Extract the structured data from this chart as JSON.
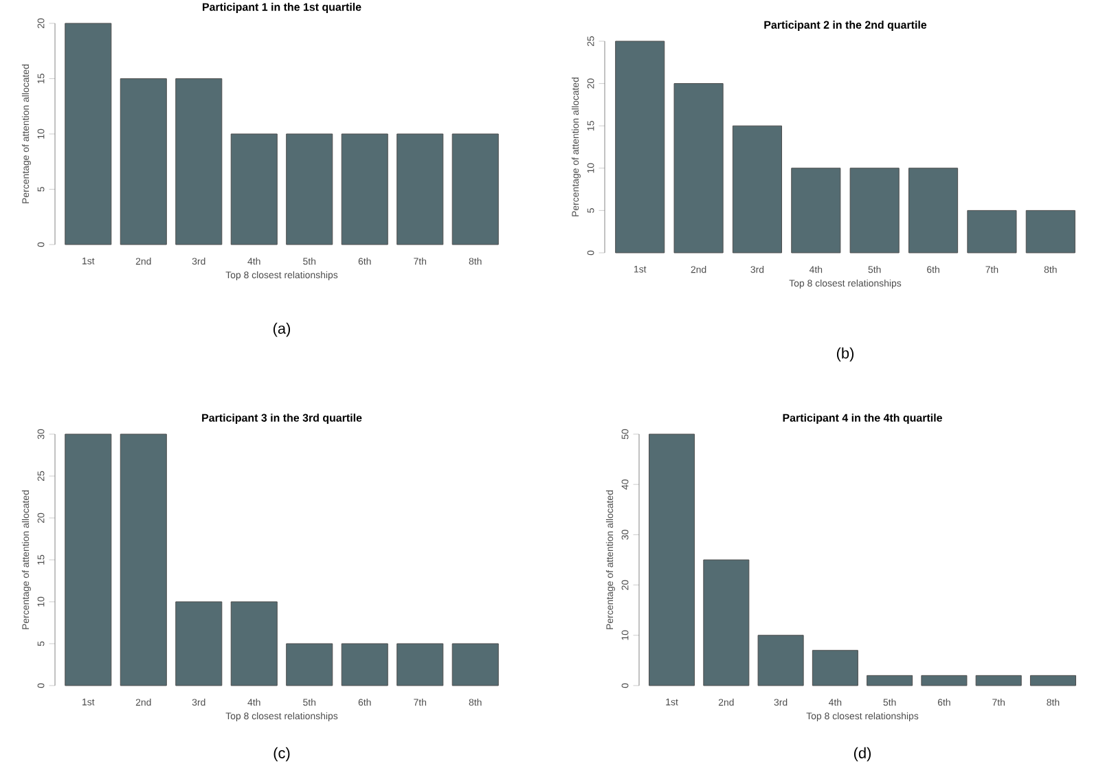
{
  "chart_data": [
    {
      "type": "bar",
      "title": "Participant 1 in the 1st quartile",
      "xlabel": "Top 8 closest relationships",
      "ylabel": "Percentage of attention allocated",
      "categories": [
        "1st",
        "2nd",
        "3rd",
        "4th",
        "5th",
        "6th",
        "7th",
        "8th"
      ],
      "values": [
        20,
        15,
        15,
        10,
        10,
        10,
        10,
        10
      ],
      "color": "#546c72",
      "ylim": [
        0,
        20
      ],
      "yticks": [
        0,
        5,
        10,
        15,
        20
      ],
      "annotations": [
        "(a)"
      ]
    },
    {
      "type": "bar",
      "title": "Participant 2 in the 2nd quartile",
      "xlabel": "Top 8 closest relationships",
      "ylabel": "Percentage of attention allocated",
      "categories": [
        "1st",
        "2nd",
        "3rd",
        "4th",
        "5th",
        "6th",
        "7th",
        "8th"
      ],
      "values": [
        25,
        20,
        15,
        10,
        10,
        10,
        5,
        5
      ],
      "color": "#546c72",
      "ylim": [
        0,
        25
      ],
      "yticks": [
        0,
        5,
        10,
        15,
        20,
        25
      ],
      "annotations": [
        "(b)"
      ]
    },
    {
      "type": "bar",
      "title": "Participant 3 in the 3rd quartile",
      "xlabel": "Top 8 closest relationships",
      "ylabel": "Percentage of attention allocated",
      "categories": [
        "1st",
        "2nd",
        "3rd",
        "4th",
        "5th",
        "6th",
        "7th",
        "8th"
      ],
      "values": [
        30,
        30,
        10,
        10,
        5,
        5,
        5,
        5
      ],
      "color": "#546c72",
      "ylim": [
        0,
        30
      ],
      "yticks": [
        0,
        5,
        10,
        15,
        20,
        25,
        30
      ],
      "annotations": [
        "(c)"
      ]
    },
    {
      "type": "bar",
      "title": "Participant 4 in the 4th quartile",
      "xlabel": "Top 8 closest relationships",
      "ylabel": "Percentage of attention allocated",
      "categories": [
        "1st",
        "2nd",
        "3rd",
        "4th",
        "5th",
        "6th",
        "7th",
        "8th"
      ],
      "values": [
        50,
        25,
        10,
        7,
        2,
        2,
        2,
        2
      ],
      "color": "#546c72",
      "ylim": [
        0,
        50
      ],
      "yticks": [
        0,
        10,
        20,
        30,
        40,
        50
      ],
      "annotations": [
        "(d)"
      ]
    }
  ]
}
